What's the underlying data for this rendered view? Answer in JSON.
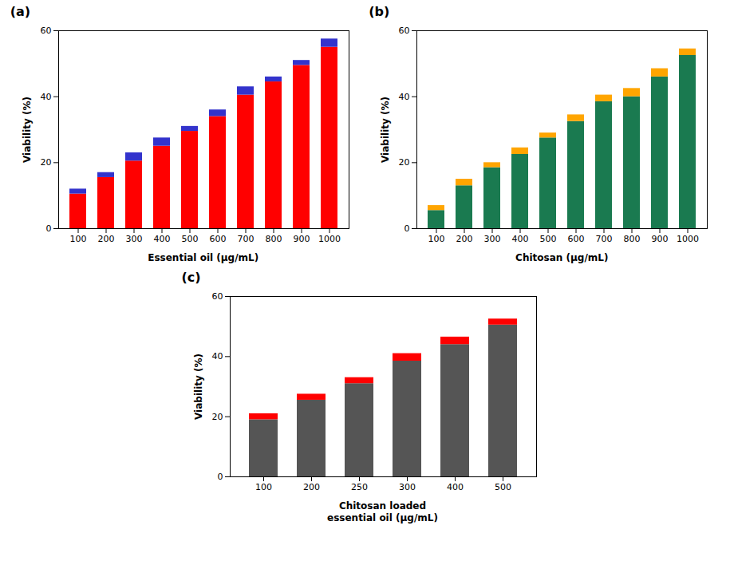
{
  "chart_data": [
    {
      "type": "bar",
      "title": "(a)",
      "stacked": true,
      "grid": false,
      "xlabel": "Essential oil (μg/mL)",
      "ylabel": "Viability (%)",
      "categories": [
        "100",
        "200",
        "300",
        "400",
        "500",
        "600",
        "700",
        "800",
        "900",
        "1000"
      ],
      "series": [
        {
          "color": "#FF0000",
          "values": [
            10.5,
            15.5,
            20.5,
            25.0,
            29.5,
            34.0,
            40.5,
            44.5,
            49.5,
            55.0
          ]
        },
        {
          "color": "#3333CC",
          "values": [
            1.5,
            1.5,
            2.5,
            2.5,
            1.5,
            2.0,
            2.5,
            1.5,
            1.5,
            2.5
          ]
        }
      ],
      "ylim": [
        0,
        60
      ],
      "yticks": [
        0,
        20,
        40,
        60
      ]
    },
    {
      "type": "bar",
      "title": "(b)",
      "stacked": true,
      "grid": false,
      "xlabel": "Chitosan (μg/mL)",
      "ylabel": "Viability (%)",
      "categories": [
        "100",
        "200",
        "300",
        "400",
        "500",
        "600",
        "700",
        "800",
        "900",
        "1000"
      ],
      "series": [
        {
          "color": "#1A7A50",
          "values": [
            5.5,
            13.0,
            18.5,
            22.5,
            27.5,
            32.5,
            38.5,
            40.0,
            46.0,
            52.5
          ]
        },
        {
          "color": "#FFA500",
          "values": [
            1.5,
            2.0,
            1.5,
            2.0,
            1.5,
            2.0,
            2.0,
            2.5,
            2.5,
            2.0
          ]
        }
      ],
      "ylim": [
        0,
        60
      ],
      "yticks": [
        0,
        20,
        40,
        60
      ]
    },
    {
      "type": "bar",
      "title": "(c)",
      "stacked": true,
      "grid": false,
      "xlabel": "Chitosan loaded\nessential oil (μg/mL)",
      "ylabel": "Viability (%)",
      "categories": [
        "100",
        "200",
        "250",
        "300",
        "400",
        "500"
      ],
      "series": [
        {
          "color": "#555555",
          "values": [
            19.0,
            25.5,
            31.0,
            38.5,
            44.0,
            50.5
          ]
        },
        {
          "color": "#FF0000",
          "values": [
            2.0,
            2.0,
            2.0,
            2.5,
            2.5,
            2.0
          ]
        }
      ],
      "ylim": [
        0,
        60
      ],
      "yticks": [
        0,
        20,
        40,
        60
      ]
    }
  ]
}
